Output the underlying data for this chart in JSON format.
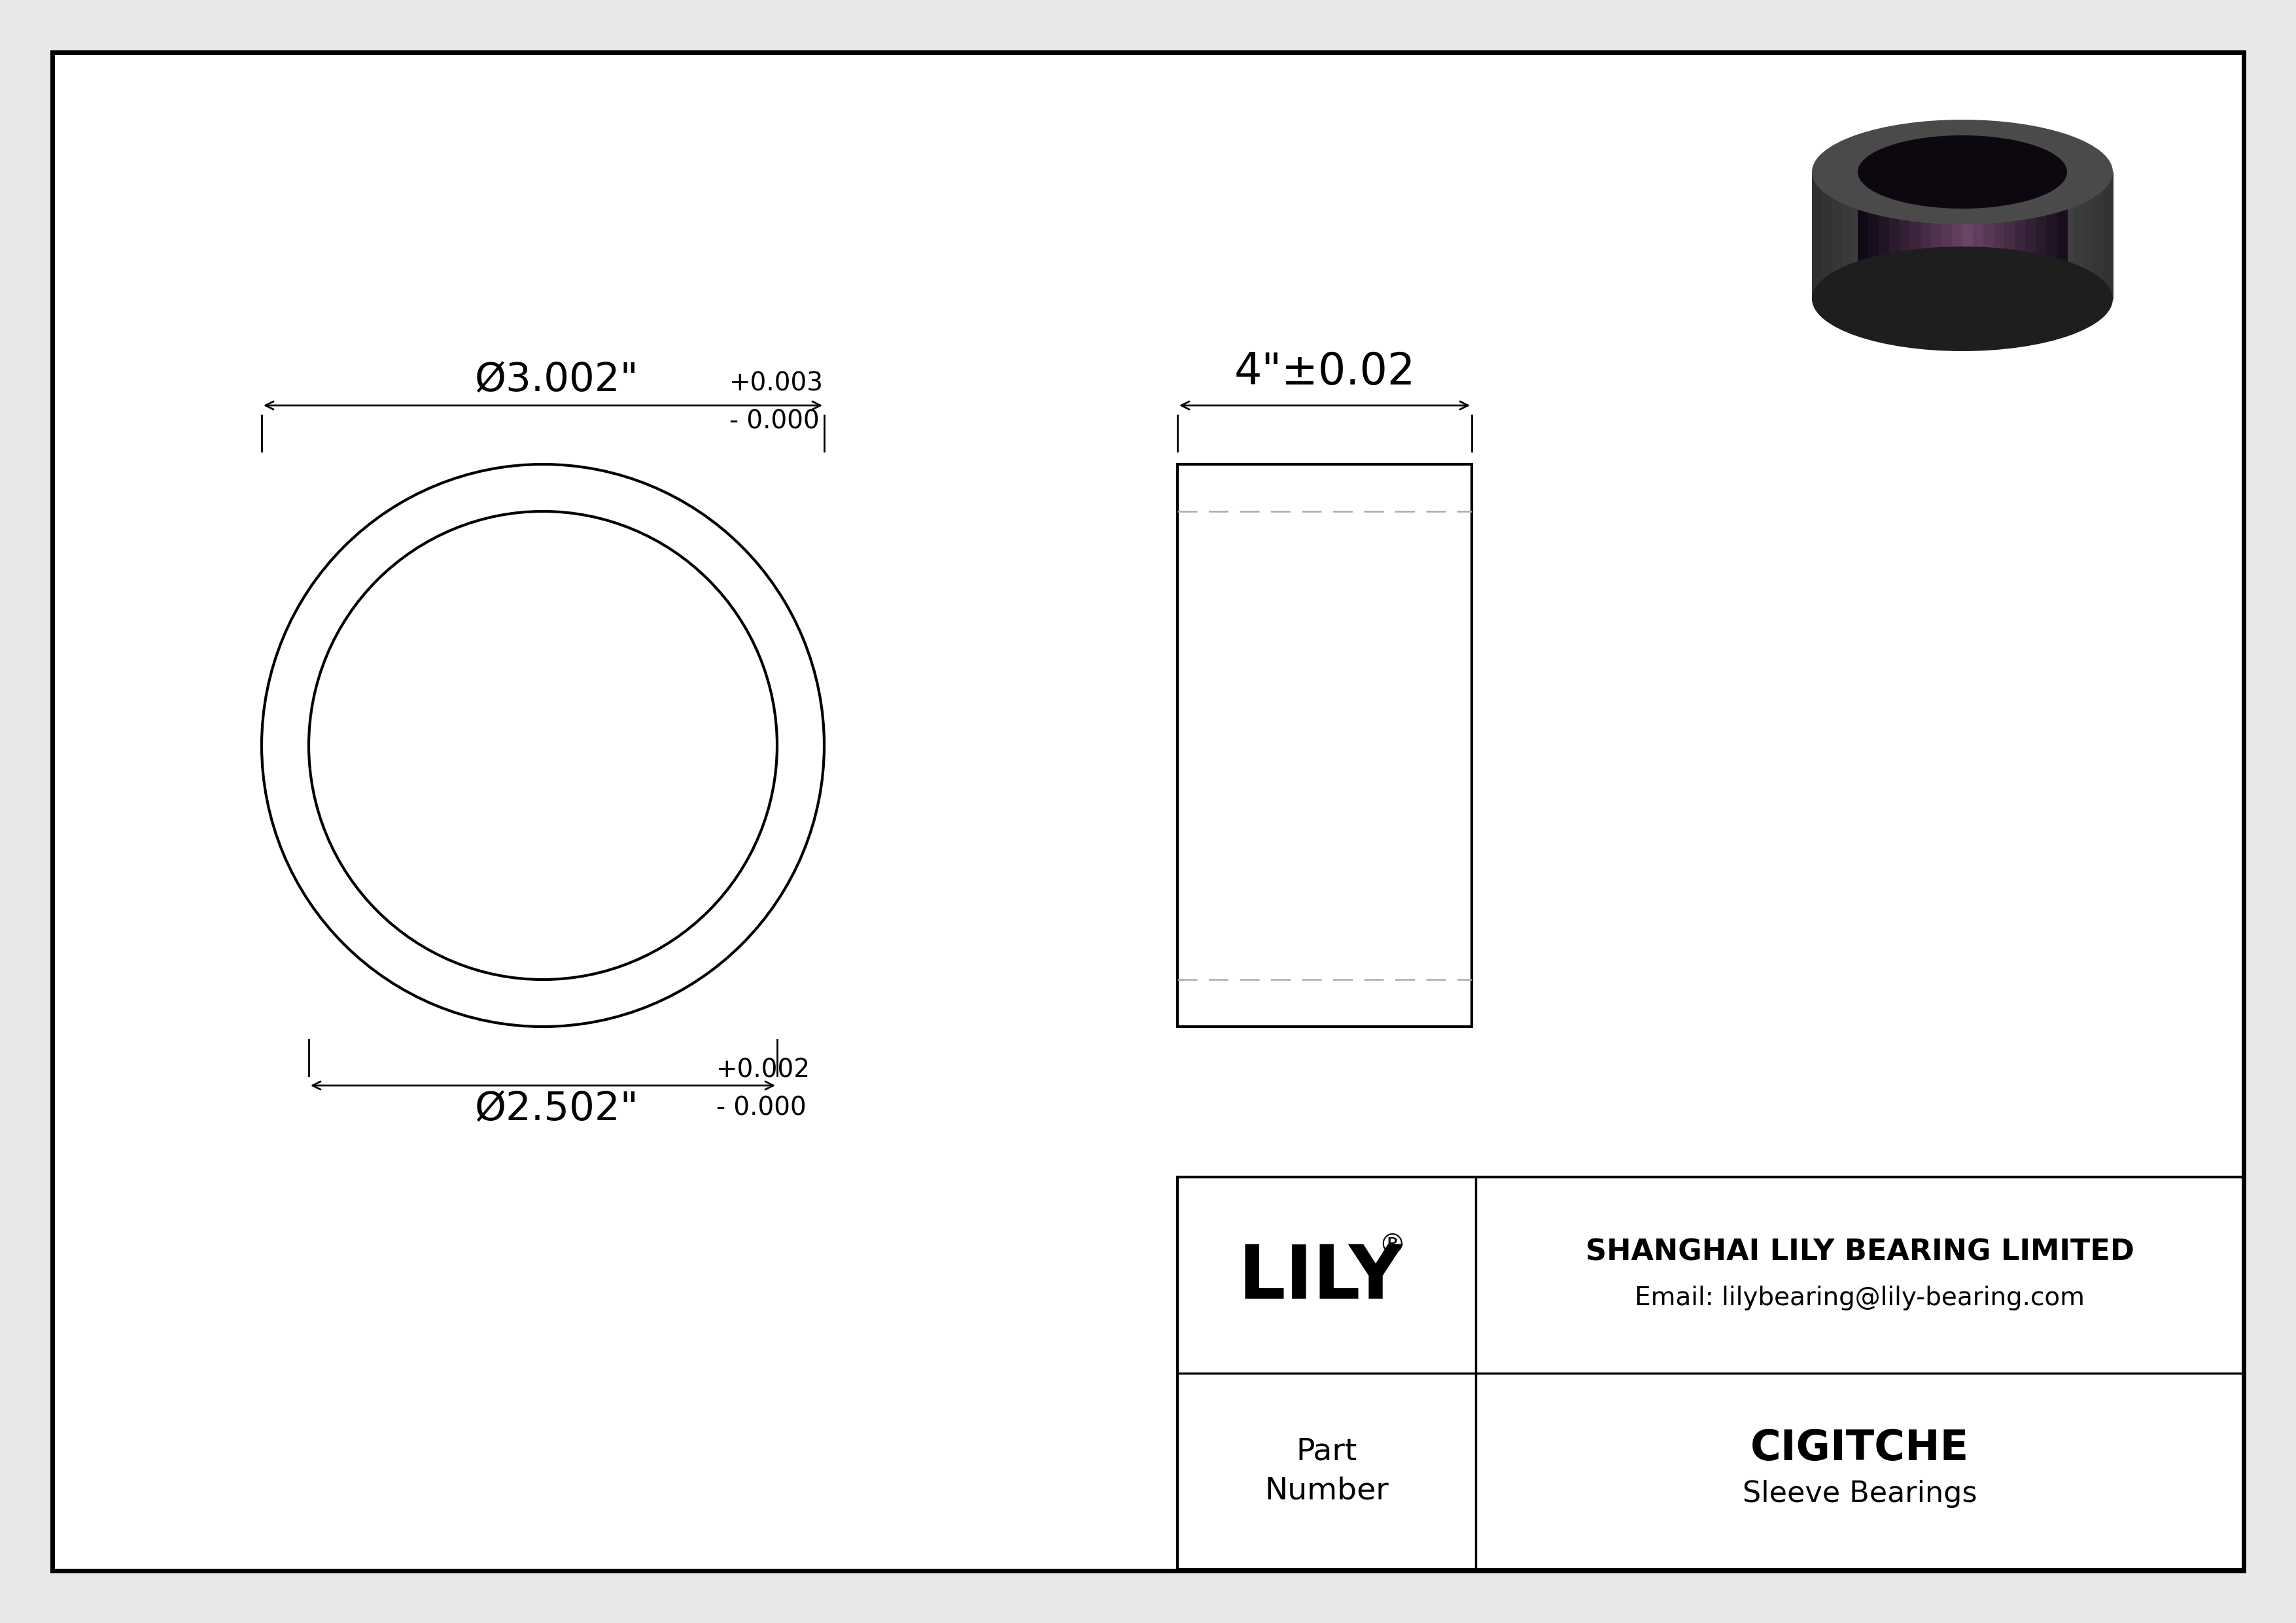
{
  "bg_color": "#e8e8e8",
  "drawing_bg": "#ffffff",
  "outer_diam_main": "Ø3.002\"",
  "outer_diam_tol_top": "+0.003",
  "outer_diam_tol_bot": "- 0.000",
  "inner_diam_main": "Ø2.502\"",
  "inner_diam_tol_top": "+0.002",
  "inner_diam_tol_bot": "- 0.000",
  "length_label": "4\"±0.02",
  "company_name": "SHANGHAI LILY BEARING LIMITED",
  "company_email": "Email: lilybearing@lily-bearing.com",
  "part_label_line1": "Part",
  "part_label_line2": "Number",
  "part_number": "CIGITCHE",
  "part_type": "Sleeve Bearings",
  "line_color": "#000000",
  "dash_color": "#aaaaaa"
}
